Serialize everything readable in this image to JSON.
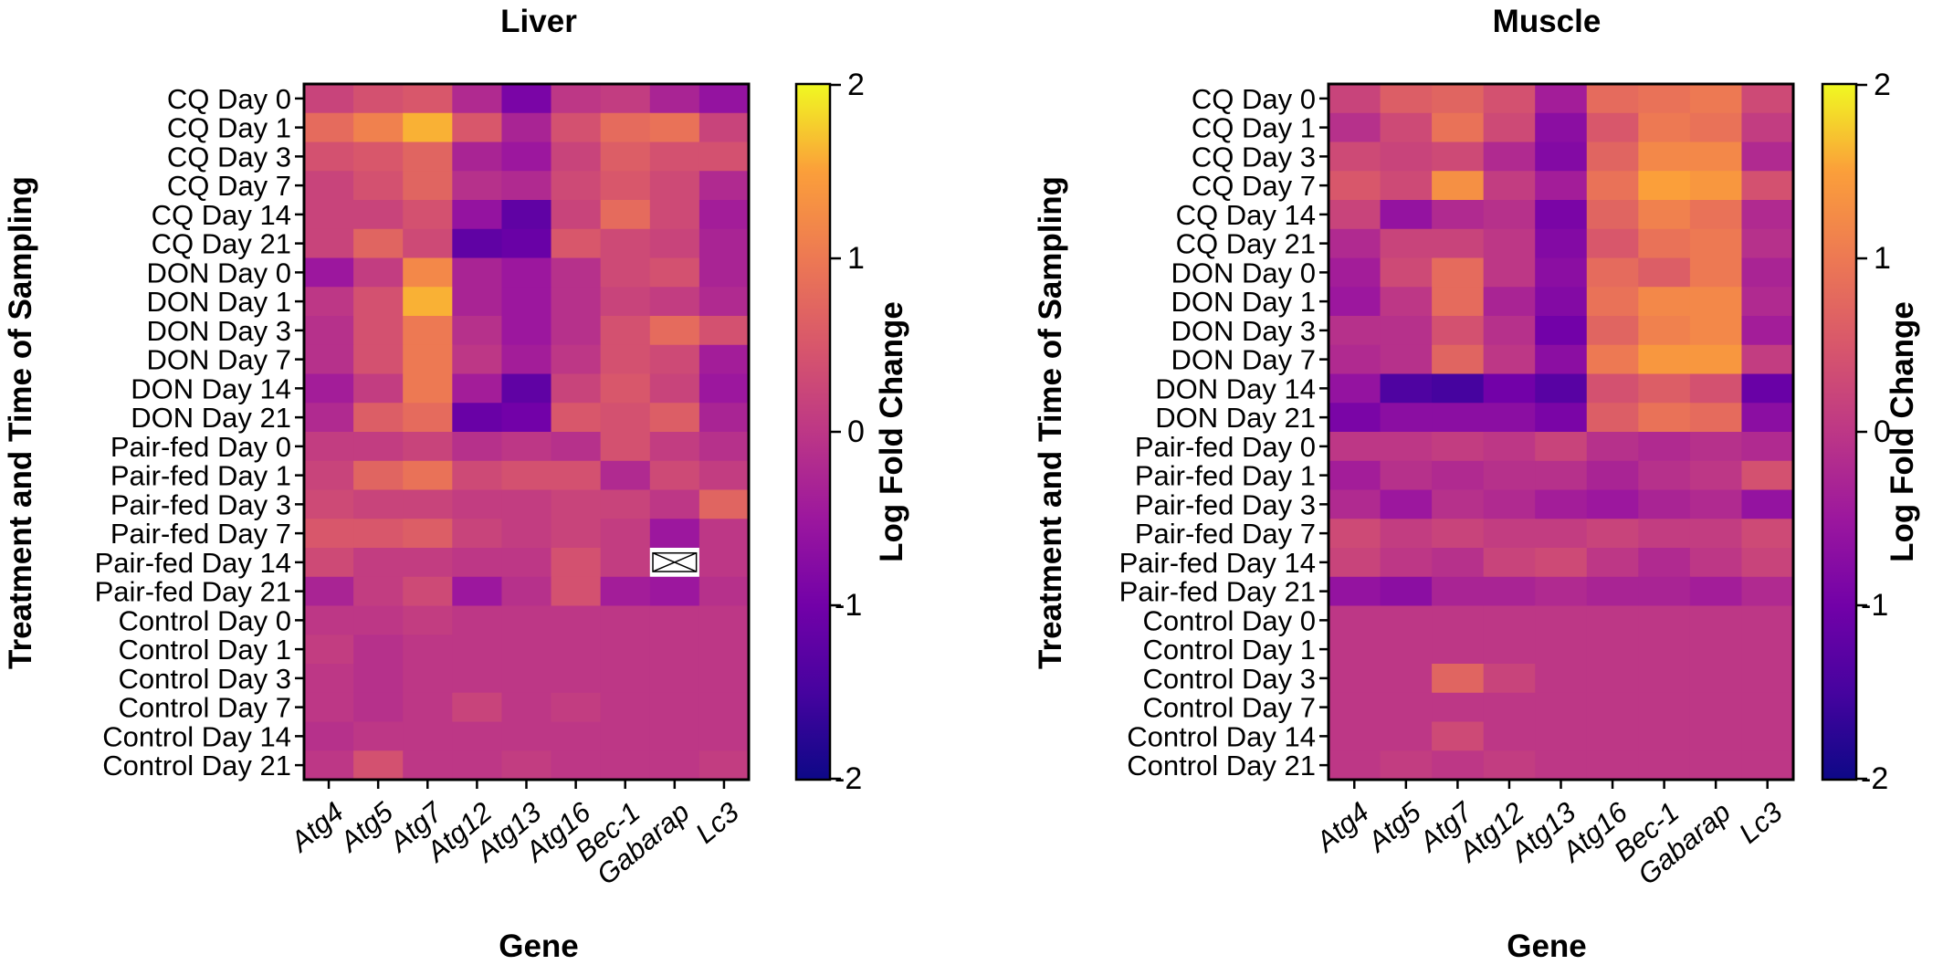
{
  "chart_data": [
    {
      "type": "heatmap",
      "title": "Liver",
      "xlabel": "Gene",
      "ylabel": "Treatment and Time of Sampling",
      "colorbar_label": "Log Fold Change",
      "colorbar_ticks": [
        "2",
        "1",
        "0",
        "-1",
        "-2"
      ],
      "colorscale": "plasma",
      "zlim": [
        -2,
        2
      ],
      "columns": [
        "Atg4",
        "Atg5",
        "Atg7",
        "Atg12",
        "Atg13",
        "Atg16",
        "Bec-1",
        "Gabarap",
        "Lc3"
      ],
      "rows": [
        "CQ Day 0",
        "CQ Day 1",
        "CQ Day 3",
        "CQ Day 7",
        "CQ Day 14",
        "CQ Day 21",
        "DON Day 0",
        "DON Day 1",
        "DON Day 3",
        "DON Day 7",
        "DON Day 14",
        "DON Day 21",
        "Pair-fed Day 0",
        "Pair-fed Day 1",
        "Pair-fed Day 3",
        "Pair-fed Day 7",
        "Pair-fed Day 14",
        "Pair-fed Day 21",
        "Control Day 0",
        "Control Day 1",
        "Control Day 3",
        "Control Day 7",
        "Control Day 14",
        "Control Day 21"
      ],
      "missing_cells": [
        [
          16,
          7
        ]
      ],
      "values": [
        [
          0.2,
          0.4,
          0.5,
          -0.2,
          -0.9,
          0.0,
          0.1,
          -0.3,
          -0.6
        ],
        [
          0.8,
          1.1,
          1.6,
          0.5,
          -0.3,
          0.4,
          0.8,
          0.9,
          0.2
        ],
        [
          0.4,
          0.5,
          0.7,
          -0.3,
          -0.5,
          0.2,
          0.6,
          0.4,
          0.4
        ],
        [
          0.2,
          0.4,
          0.7,
          -0.1,
          -0.2,
          0.3,
          0.5,
          0.3,
          -0.2
        ],
        [
          0.2,
          0.2,
          0.4,
          -0.6,
          -1.2,
          0.2,
          0.8,
          0.3,
          -0.4
        ],
        [
          0.2,
          0.7,
          0.3,
          -1.2,
          -1.1,
          0.5,
          0.3,
          0.2,
          -0.3
        ],
        [
          -0.5,
          0.1,
          1.2,
          -0.3,
          -0.5,
          -0.1,
          0.3,
          0.4,
          -0.3
        ],
        [
          0.0,
          0.4,
          1.6,
          -0.3,
          -0.5,
          -0.1,
          0.2,
          0.1,
          -0.2
        ],
        [
          -0.1,
          0.4,
          1.0,
          -0.1,
          -0.5,
          -0.1,
          0.4,
          0.8,
          0.4
        ],
        [
          -0.1,
          0.4,
          1.0,
          0.0,
          -0.4,
          0.0,
          0.4,
          0.3,
          -0.4
        ],
        [
          -0.4,
          0.1,
          1.0,
          -0.4,
          -1.2,
          0.2,
          0.5,
          0.2,
          -0.5
        ],
        [
          -0.2,
          0.6,
          0.8,
          -1.1,
          -1.0,
          0.5,
          0.4,
          0.6,
          -0.3
        ],
        [
          0.1,
          0.1,
          0.2,
          -0.1,
          0.0,
          -0.1,
          0.4,
          0.1,
          -0.1
        ],
        [
          0.2,
          0.7,
          0.9,
          0.3,
          0.4,
          0.4,
          -0.2,
          0.3,
          0.1
        ],
        [
          0.3,
          0.2,
          0.2,
          0.1,
          0.1,
          0.2,
          0.2,
          0.0,
          0.7
        ],
        [
          0.5,
          0.5,
          0.6,
          0.2,
          0.1,
          0.2,
          0.1,
          -0.5,
          0.0
        ],
        [
          0.3,
          0.1,
          0.1,
          0.0,
          0.0,
          0.4,
          0.1,
          null,
          0.0
        ],
        [
          -0.3,
          0.1,
          0.3,
          -0.5,
          -0.1,
          0.4,
          -0.4,
          -0.5,
          -0.1
        ],
        [
          0.0,
          0.0,
          0.1,
          0.0,
          0.0,
          0.0,
          0.0,
          0.0,
          0.0
        ],
        [
          0.1,
          -0.1,
          0.0,
          0.0,
          0.0,
          0.0,
          0.0,
          0.0,
          0.0
        ],
        [
          0.0,
          -0.1,
          0.0,
          0.0,
          0.0,
          0.0,
          0.0,
          0.0,
          0.0
        ],
        [
          0.0,
          -0.1,
          0.0,
          0.2,
          0.0,
          0.1,
          0.0,
          0.0,
          0.0
        ],
        [
          -0.1,
          0.0,
          0.0,
          0.0,
          0.0,
          0.0,
          0.0,
          0.0,
          0.0
        ],
        [
          0.0,
          0.4,
          0.0,
          0.0,
          0.1,
          0.0,
          0.0,
          0.0,
          0.1
        ]
      ]
    },
    {
      "type": "heatmap",
      "title": "Muscle",
      "xlabel": "Gene",
      "ylabel": "Treatment and Time of Sampling",
      "colorbar_label": "Log Fold Change",
      "colorbar_ticks": [
        "2",
        "1",
        "0",
        "-1",
        "-2"
      ],
      "colorscale": "plasma",
      "zlim": [
        -2,
        2
      ],
      "columns": [
        "Atg4",
        "Atg5",
        "Atg7",
        "Atg12",
        "Atg13",
        "Atg16",
        "Bec-1",
        "Gabarap",
        "Lc3"
      ],
      "rows": [
        "CQ Day 0",
        "CQ Day 1",
        "CQ Day 3",
        "CQ Day 7",
        "CQ Day 14",
        "CQ Day 21",
        "DON Day 0",
        "DON Day 1",
        "DON Day 3",
        "DON Day 7",
        "DON Day 14",
        "DON Day 21",
        "Pair-fed Day 0",
        "Pair-fed Day 1",
        "Pair-fed Day 3",
        "Pair-fed Day 7",
        "Pair-fed Day 14",
        "Pair-fed Day 21",
        "Control Day 0",
        "Control Day 1",
        "Control Day 3",
        "Control Day 7",
        "Control Day 14",
        "Control Day 21"
      ],
      "missing_cells": [],
      "values": [
        [
          0.2,
          0.6,
          0.7,
          0.4,
          -0.4,
          0.8,
          0.9,
          1.0,
          0.3
        ],
        [
          -0.1,
          0.3,
          0.9,
          0.3,
          -0.7,
          0.5,
          1.0,
          0.9,
          0.1
        ],
        [
          0.3,
          0.2,
          0.3,
          -0.2,
          -0.8,
          0.7,
          1.2,
          1.2,
          -0.2
        ],
        [
          0.5,
          0.3,
          1.3,
          0.1,
          -0.4,
          0.9,
          1.5,
          1.4,
          0.4
        ],
        [
          0.2,
          -0.6,
          -0.2,
          -0.1,
          -0.9,
          0.7,
          1.1,
          0.9,
          -0.2
        ],
        [
          -0.2,
          0.2,
          0.2,
          0.0,
          -0.8,
          0.5,
          0.9,
          1.0,
          -0.1
        ],
        [
          -0.4,
          0.3,
          0.8,
          0.0,
          -0.7,
          0.8,
          0.6,
          1.0,
          -0.3
        ],
        [
          -0.5,
          0.0,
          0.8,
          -0.3,
          -0.8,
          0.9,
          1.2,
          1.2,
          -0.2
        ],
        [
          -0.1,
          -0.1,
          0.4,
          -0.1,
          -1.0,
          0.7,
          1.1,
          1.2,
          -0.4
        ],
        [
          -0.2,
          -0.1,
          0.7,
          0.0,
          -0.7,
          1.0,
          1.4,
          1.4,
          0.1
        ],
        [
          -0.6,
          -1.4,
          -1.5,
          -1.0,
          -1.3,
          0.4,
          0.6,
          0.4,
          -1.1
        ],
        [
          -0.9,
          -0.7,
          -0.7,
          -0.7,
          -0.9,
          0.6,
          0.9,
          0.8,
          -0.7
        ],
        [
          0.0,
          0.0,
          0.1,
          0.0,
          0.2,
          -0.1,
          -0.2,
          -0.1,
          -0.2
        ],
        [
          -0.4,
          -0.1,
          -0.2,
          -0.1,
          -0.1,
          -0.3,
          -0.1,
          0.0,
          0.4
        ],
        [
          -0.2,
          -0.5,
          -0.1,
          -0.2,
          -0.4,
          -0.5,
          -0.3,
          -0.2,
          -0.6
        ],
        [
          0.3,
          0.1,
          0.2,
          0.1,
          0.1,
          0.2,
          0.1,
          0.1,
          0.3
        ],
        [
          0.2,
          0.0,
          -0.1,
          0.2,
          0.3,
          0.0,
          -0.2,
          0.0,
          0.2
        ],
        [
          -0.6,
          -0.7,
          -0.3,
          -0.3,
          -0.2,
          -0.3,
          -0.3,
          -0.4,
          -0.2
        ],
        [
          0.0,
          0.0,
          0.0,
          0.0,
          0.0,
          0.0,
          0.0,
          0.0,
          0.0
        ],
        [
          0.0,
          0.0,
          0.0,
          0.0,
          0.0,
          0.0,
          0.0,
          0.0,
          0.0
        ],
        [
          0.0,
          0.0,
          0.7,
          0.2,
          0.0,
          0.0,
          0.0,
          0.0,
          0.0
        ],
        [
          0.0,
          0.0,
          0.0,
          0.0,
          0.0,
          0.0,
          0.0,
          0.0,
          0.0
        ],
        [
          0.0,
          0.0,
          0.3,
          0.0,
          0.0,
          0.0,
          0.0,
          0.0,
          0.0
        ],
        [
          0.0,
          0.1,
          0.0,
          0.1,
          0.0,
          0.0,
          0.0,
          0.0,
          0.0
        ]
      ]
    }
  ]
}
